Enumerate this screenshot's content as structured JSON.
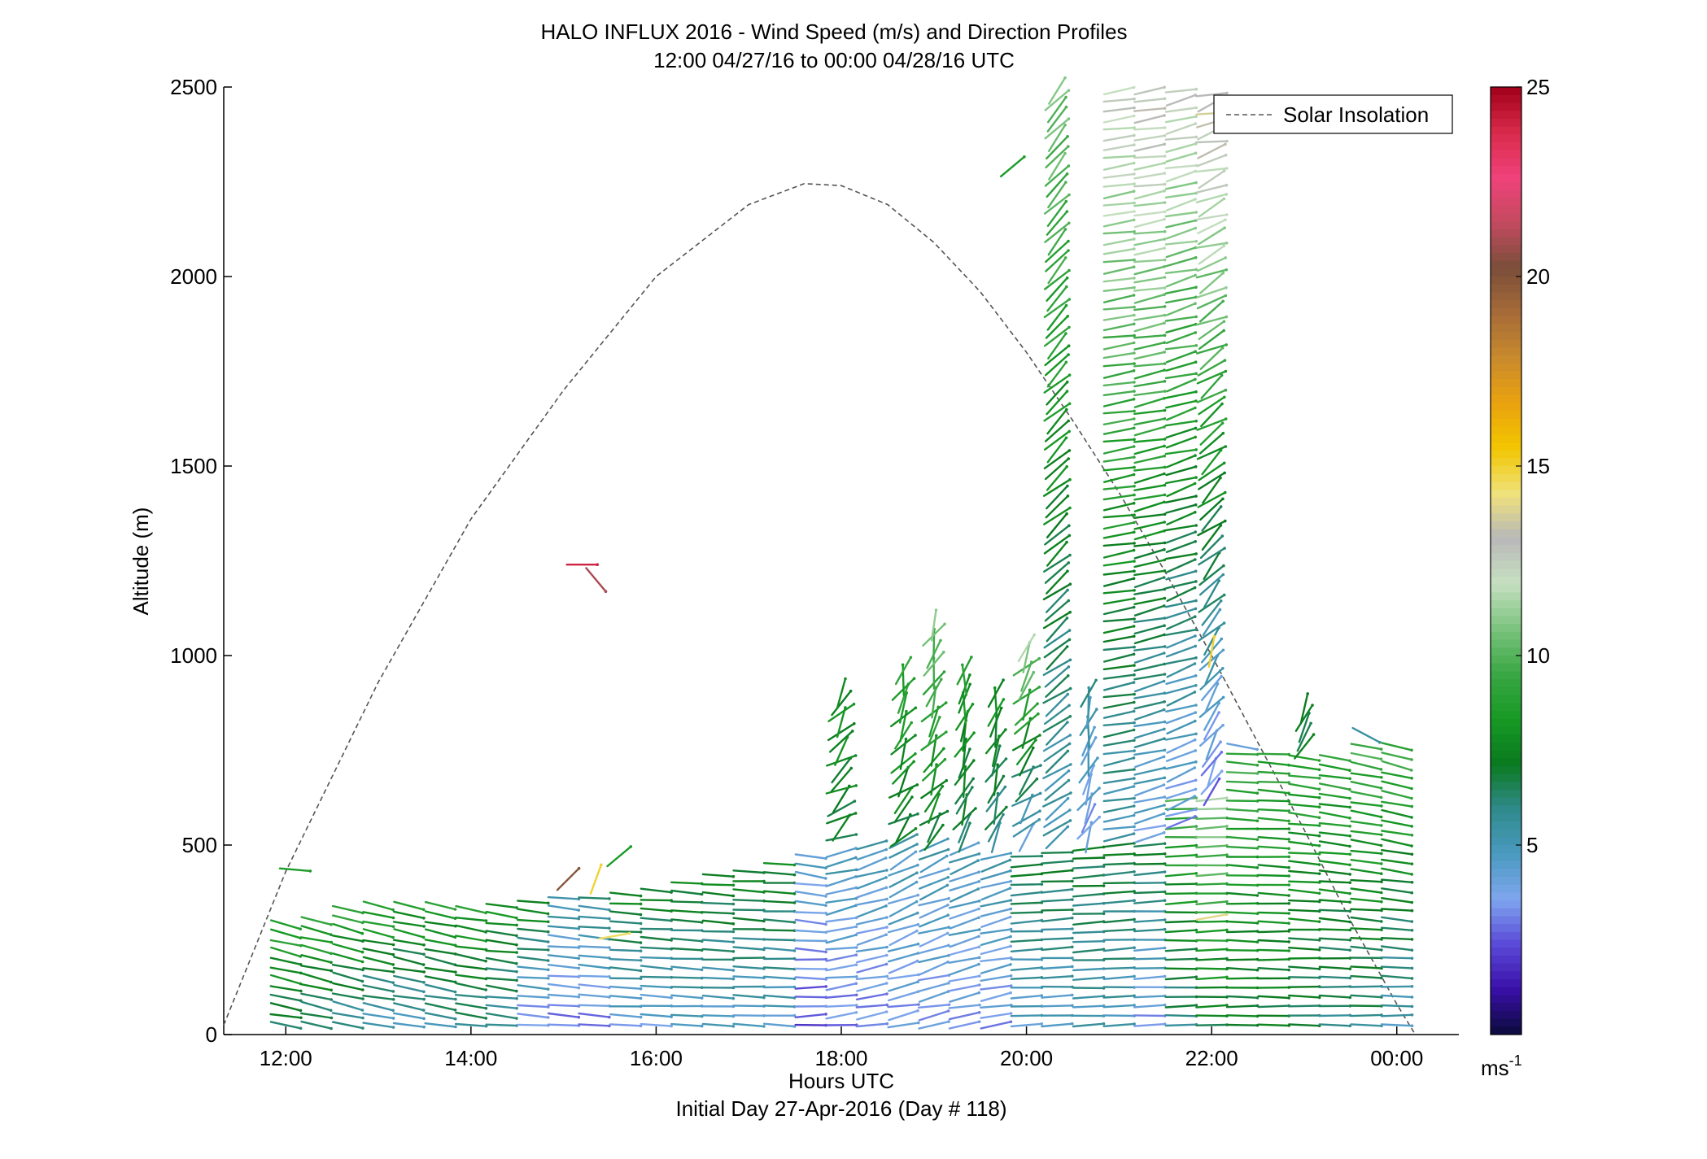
{
  "chart_data": {
    "type": "vector-field",
    "title": "HALO INFLUX 2016 - Wind Speed (m/s) and Direction Profiles",
    "subtitle": "12:00 04/27/16 to 00:00 04/28/16  UTC",
    "xlabel": "Hours UTC",
    "xlabel2": "Initial Day 27-Apr-2016 (Day # 118)",
    "ylabel": "Altitude (m)",
    "xlim": [
      11.33,
      24.67
    ],
    "ylim": [
      0,
      2500
    ],
    "x_ticks": [
      12,
      14,
      16,
      18,
      20,
      22,
      24
    ],
    "x_tick_labels": [
      "12:00",
      "14:00",
      "16:00",
      "18:00",
      "20:00",
      "22:00",
      "00:00"
    ],
    "y_ticks": [
      0,
      500,
      1000,
      1500,
      2000,
      2500
    ],
    "y_tick_labels": [
      "0",
      "500",
      "1000",
      "1500",
      "2000",
      "2500"
    ],
    "legend": {
      "label": "Solar Insolation",
      "position": "top-right"
    },
    "colorbar": {
      "min": 0,
      "max": 25,
      "ticks": [
        5,
        10,
        15,
        20,
        25
      ],
      "tick_labels": [
        "5",
        "10",
        "15",
        "20",
        "25"
      ],
      "unit_label": "ms",
      "unit_exponent": "-1",
      "colors": [
        "#0b0b3c",
        "#3a0fa8",
        "#5a4ad8",
        "#7fa6ee",
        "#4a9ac0",
        "#2f8a8a",
        "#0a7a1f",
        "#179a24",
        "#3aa744",
        "#7cc47f",
        "#c7dfc1",
        "#b8b8b8",
        "#f0e27a",
        "#f2c500",
        "#e9a20f",
        "#c88a2c",
        "#a66a38",
        "#7a4e3a",
        "#c44a60",
        "#f0427a",
        "#d82a4a",
        "#a1001a"
      ]
    },
    "solar_insolation": {
      "style": "dashed",
      "color": "#555555",
      "points": [
        [
          11.33,
          25
        ],
        [
          12.0,
          430
        ],
        [
          13.0,
          930
        ],
        [
          14.0,
          1360
        ],
        [
          15.0,
          1700
        ],
        [
          16.0,
          2000
        ],
        [
          17.0,
          2190
        ],
        [
          17.6,
          2245
        ],
        [
          18.0,
          2240
        ],
        [
          18.5,
          2190
        ],
        [
          19.0,
          2090
        ],
        [
          19.5,
          1960
        ],
        [
          20.0,
          1800
        ],
        [
          20.5,
          1620
        ],
        [
          21.0,
          1430
        ],
        [
          21.5,
          1220
        ],
        [
          22.0,
          1000
        ],
        [
          22.5,
          770
        ],
        [
          23.0,
          540
        ],
        [
          23.5,
          300
        ],
        [
          24.0,
          80
        ],
        [
          24.2,
          0
        ]
      ]
    },
    "wind_profiles": [
      {
        "x": 12.0,
        "ymin": 25,
        "ymax": 290,
        "speed_lo": 6.5,
        "speed_hi": 9.0,
        "angle_lo": -10,
        "angle_hi": -15,
        "jitter": 4
      },
      {
        "x": 12.33,
        "ymin": 25,
        "ymax": 300,
        "speed_lo": 6.0,
        "speed_hi": 9.0,
        "angle_lo": -12,
        "angle_hi": -14,
        "jitter": 4
      },
      {
        "x": 12.67,
        "ymin": 25,
        "ymax": 330,
        "speed_lo": 5.5,
        "speed_hi": 9.0,
        "angle_lo": -12,
        "angle_hi": -15,
        "jitter": 4
      },
      {
        "x": 13.0,
        "ymin": 25,
        "ymax": 340,
        "speed_lo": 5.0,
        "speed_hi": 9.0,
        "angle_lo": -10,
        "angle_hi": -12,
        "jitter": 4
      },
      {
        "x": 13.33,
        "ymin": 25,
        "ymax": 340,
        "speed_lo": 5.0,
        "speed_hi": 8.5,
        "angle_lo": -10,
        "angle_hi": -12,
        "jitter": 4
      },
      {
        "x": 13.67,
        "ymin": 25,
        "ymax": 340,
        "speed_lo": 5.5,
        "speed_hi": 8.5,
        "angle_lo": -10,
        "angle_hi": -12,
        "jitter": 4
      },
      {
        "x": 14.0,
        "ymin": 25,
        "ymax": 330,
        "speed_lo": 6.0,
        "speed_hi": 8.5,
        "angle_lo": -8,
        "angle_hi": -10,
        "jitter": 4
      },
      {
        "x": 14.33,
        "ymin": 25,
        "ymax": 340,
        "speed_lo": 5.5,
        "speed_hi": 8.0,
        "angle_lo": -6,
        "angle_hi": -8,
        "jitter": 4
      },
      {
        "x": 14.67,
        "ymin": 25,
        "ymax": 350,
        "speed_lo": 3.0,
        "speed_hi": 8.0,
        "angle_lo": -4,
        "angle_hi": -6,
        "jitter": 3
      },
      {
        "x": 15.0,
        "ymin": 25,
        "ymax": 360,
        "speed_lo": 3.0,
        "speed_hi": 5.5,
        "angle_lo": -4,
        "angle_hi": -6,
        "jitter": 3
      },
      {
        "x": 15.33,
        "ymin": 25,
        "ymax": 360,
        "speed_lo": 3.0,
        "speed_hi": 6.0,
        "angle_lo": -4,
        "angle_hi": -5,
        "jitter": 3
      },
      {
        "x": 15.67,
        "ymin": 25,
        "ymax": 370,
        "speed_lo": 4.0,
        "speed_hi": 7.5,
        "angle_lo": -3,
        "angle_hi": -4,
        "jitter": 3
      },
      {
        "x": 16.0,
        "ymin": 25,
        "ymax": 380,
        "speed_lo": 4.0,
        "speed_hi": 7.5,
        "angle_lo": -3,
        "angle_hi": -4,
        "jitter": 3
      },
      {
        "x": 16.33,
        "ymin": 25,
        "ymax": 400,
        "speed_lo": 4.5,
        "speed_hi": 7.5,
        "angle_lo": -2,
        "angle_hi": -4,
        "jitter": 3
      },
      {
        "x": 16.67,
        "ymin": 25,
        "ymax": 420,
        "speed_lo": 4.5,
        "speed_hi": 7.5,
        "angle_lo": -2,
        "angle_hi": -4,
        "jitter": 3
      },
      {
        "x": 17.0,
        "ymin": 25,
        "ymax": 430,
        "speed_lo": 4.5,
        "speed_hi": 7.5,
        "angle_lo": -2,
        "angle_hi": -3,
        "jitter": 3
      },
      {
        "x": 17.33,
        "ymin": 25,
        "ymax": 450,
        "speed_lo": 4.5,
        "speed_hi": 7.5,
        "angle_lo": -2,
        "angle_hi": -3,
        "jitter": 3
      },
      {
        "x": 17.67,
        "ymin": 25,
        "ymax": 470,
        "speed_lo": 2.5,
        "speed_hi": 4.5,
        "angle_lo": 3,
        "angle_hi": -10,
        "jitter": 4
      },
      {
        "x": 18.0,
        "ymin": 25,
        "ymax": 480,
        "speed_lo": 3.0,
        "speed_hi": 5.0,
        "angle_lo": 5,
        "angle_hi": 15,
        "jitter": 6
      },
      {
        "x": 18.33,
        "ymin": 25,
        "ymax": 500,
        "speed_lo": 3.0,
        "speed_hi": 5.0,
        "angle_lo": 8,
        "angle_hi": 20,
        "jitter": 6
      },
      {
        "x": 18.67,
        "ymin": 25,
        "ymax": 510,
        "speed_lo": 3.5,
        "speed_hi": 5.0,
        "angle_lo": 10,
        "angle_hi": 30,
        "jitter": 8
      },
      {
        "x": 19.0,
        "ymin": 25,
        "ymax": 500,
        "speed_lo": 3.5,
        "speed_hi": 5.0,
        "angle_lo": 12,
        "angle_hi": 25,
        "jitter": 8
      },
      {
        "x": 19.33,
        "ymin": 25,
        "ymax": 490,
        "speed_lo": 3.5,
        "speed_hi": 5.0,
        "angle_lo": 10,
        "angle_hi": 22,
        "jitter": 6
      },
      {
        "x": 19.67,
        "ymin": 25,
        "ymax": 470,
        "speed_lo": 3.5,
        "speed_hi": 5.0,
        "angle_lo": 8,
        "angle_hi": 18,
        "jitter": 6
      },
      {
        "x": 20.0,
        "ymin": 25,
        "ymax": 470,
        "speed_lo": 4.5,
        "speed_hi": 7.0,
        "angle_lo": 2,
        "angle_hi": 4,
        "jitter": 3
      },
      {
        "x": 20.33,
        "ymin": 25,
        "ymax": 480,
        "speed_lo": 4.5,
        "speed_hi": 7.0,
        "angle_lo": 2,
        "angle_hi": 4,
        "jitter": 3
      },
      {
        "x": 20.67,
        "ymin": 25,
        "ymax": 490,
        "speed_lo": 5.0,
        "speed_hi": 7.0,
        "angle_lo": 2,
        "angle_hi": 4,
        "jitter": 3
      },
      {
        "x": 21.0,
        "ymin": 25,
        "ymax": 500,
        "speed_lo": 5.0,
        "speed_hi": 7.0,
        "angle_lo": 2,
        "angle_hi": 4,
        "jitter": 3
      },
      {
        "x": 21.33,
        "ymin": 25,
        "ymax": 500,
        "speed_lo": 3.5,
        "speed_hi": 7.0,
        "angle_lo": 2,
        "angle_hi": 3,
        "jitter": 3
      },
      {
        "x": 21.67,
        "ymin": 25,
        "ymax": 620,
        "speed_lo": 6.0,
        "speed_hi": 9.5,
        "angle_lo": 1,
        "angle_hi": 3,
        "jitter": 3
      },
      {
        "x": 22.0,
        "ymin": 25,
        "ymax": 620,
        "speed_lo": 7.0,
        "speed_hi": 11.0,
        "angle_lo": 1,
        "angle_hi": 3,
        "jitter": 3
      },
      {
        "x": 22.33,
        "ymin": 25,
        "ymax": 740,
        "speed_lo": 7.0,
        "speed_hi": 9.5,
        "angle_lo": 0,
        "angle_hi": -4,
        "jitter": 3
      },
      {
        "x": 22.67,
        "ymin": 25,
        "ymax": 740,
        "speed_lo": 7.0,
        "speed_hi": 9.0,
        "angle_lo": 0,
        "angle_hi": -4,
        "jitter": 3
      },
      {
        "x": 23.0,
        "ymin": 25,
        "ymax": 730,
        "speed_lo": 6.5,
        "speed_hi": 9.0,
        "angle_lo": 0,
        "angle_hi": -8,
        "jitter": 3
      },
      {
        "x": 23.33,
        "ymin": 25,
        "ymax": 730,
        "speed_lo": 6.0,
        "speed_hi": 9.0,
        "angle_lo": 0,
        "angle_hi": -10,
        "jitter": 3
      },
      {
        "x": 23.67,
        "ymin": 25,
        "ymax": 760,
        "speed_lo": 6.0,
        "speed_hi": 9.5,
        "angle_lo": 0,
        "angle_hi": -12,
        "jitter": 3
      },
      {
        "x": 24.0,
        "ymin": 25,
        "ymax": 760,
        "speed_lo": 5.0,
        "speed_hi": 9.5,
        "angle_lo": 0,
        "angle_hi": -15,
        "jitter": 3
      },
      {
        "x": 18.0,
        "ymin": 520,
        "ymax": 900,
        "speed_lo": 7.0,
        "speed_hi": 8.0,
        "angle_lo": 30,
        "angle_hi": 55,
        "jitter": 25
      },
      {
        "x": 18.67,
        "ymin": 520,
        "ymax": 960,
        "speed_lo": 7.0,
        "speed_hi": 9.0,
        "angle_lo": 40,
        "angle_hi": 70,
        "jitter": 25
      },
      {
        "x": 19.0,
        "ymin": 520,
        "ymax": 1080,
        "speed_lo": 7.0,
        "speed_hi": 10.5,
        "angle_lo": 50,
        "angle_hi": 70,
        "jitter": 25
      },
      {
        "x": 19.33,
        "ymin": 520,
        "ymax": 960,
        "speed_lo": 6.5,
        "speed_hi": 8.5,
        "angle_lo": 60,
        "angle_hi": 80,
        "jitter": 20
      },
      {
        "x": 19.67,
        "ymin": 520,
        "ymax": 900,
        "speed_lo": 6.0,
        "speed_hi": 8.0,
        "angle_lo": 60,
        "angle_hi": 75,
        "jitter": 20
      },
      {
        "x": 20.0,
        "ymin": 520,
        "ymax": 1020,
        "speed_lo": 4.5,
        "speed_hi": 11.0,
        "angle_lo": 40,
        "angle_hi": 60,
        "jitter": 25
      },
      {
        "x": 20.33,
        "ymin": 520,
        "ymax": 2490,
        "speed_lo": 5.0,
        "speed_hi": 10.5,
        "angle_lo": 35,
        "angle_hi": 50,
        "jitter": 10
      },
      {
        "x": 20.67,
        "ymin": 520,
        "ymax": 900,
        "speed_lo": 3.5,
        "speed_hi": 5.5,
        "angle_lo": 60,
        "angle_hi": 80,
        "jitter": 20
      },
      {
        "x": 21.0,
        "ymin": 520,
        "ymax": 2490,
        "speed_lo": 5.0,
        "speed_hi": 12.5,
        "angle_lo": 10,
        "angle_hi": 8,
        "jitter": 5
      },
      {
        "x": 21.33,
        "ymin": 520,
        "ymax": 2490,
        "speed_lo": 4.0,
        "speed_hi": 13.0,
        "angle_lo": 15,
        "angle_hi": 8,
        "jitter": 6
      },
      {
        "x": 21.67,
        "ymin": 560,
        "ymax": 2490,
        "speed_lo": 3.5,
        "speed_hi": 12.5,
        "angle_lo": 20,
        "angle_hi": 12,
        "jitter": 8
      },
      {
        "x": 22.0,
        "ymin": 640,
        "ymax": 2480,
        "speed_lo": 3.0,
        "speed_hi": 13.5,
        "angle_lo": 60,
        "angle_hi": 14,
        "jitter": 15
      },
      {
        "x": 22.33,
        "ymin": 760,
        "ymax": 760,
        "speed_lo": 4.0,
        "speed_hi": 4.0,
        "angle_lo": -10,
        "angle_hi": -10,
        "jitter": 3
      },
      {
        "x": 23.0,
        "ymin": 760,
        "ymax": 860,
        "speed_lo": 7.0,
        "speed_hi": 7.0,
        "angle_lo": 60,
        "angle_hi": 70,
        "jitter": 10
      },
      {
        "x": 23.67,
        "ymin": 790,
        "ymax": 790,
        "speed_lo": 6.0,
        "speed_hi": 6.0,
        "angle_lo": -25,
        "angle_hi": -25,
        "jitter": 3
      }
    ],
    "isolated_barbs": [
      {
        "x": 12.1,
        "y": 435,
        "speed": 8.5,
        "angle": -5
      },
      {
        "x": 15.2,
        "y": 1240,
        "speed": 24.0,
        "angle": 0
      },
      {
        "x": 15.35,
        "y": 1200,
        "speed": 21.0,
        "angle": -50
      },
      {
        "x": 15.05,
        "y": 410,
        "speed": 20.0,
        "angle": 45
      },
      {
        "x": 15.35,
        "y": 410,
        "speed": 15.0,
        "angle": 70
      },
      {
        "x": 15.6,
        "y": 470,
        "speed": 8.5,
        "angle": 40
      },
      {
        "x": 15.55,
        "y": 260,
        "speed": 14.5,
        "angle": 10
      },
      {
        "x": 19.85,
        "y": 2290,
        "speed": 8.5,
        "angle": 40
      },
      {
        "x": 22.0,
        "y": 1010,
        "speed": 15.0,
        "angle": 80
      },
      {
        "x": 22.0,
        "y": 310,
        "speed": 14.0,
        "angle": 10
      }
    ]
  }
}
